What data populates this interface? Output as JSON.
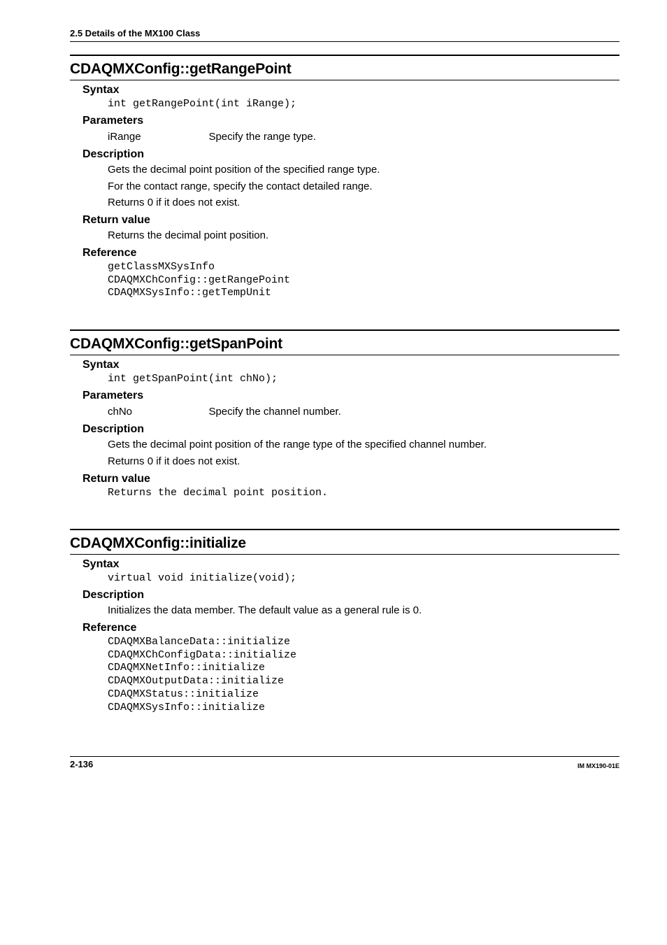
{
  "page": {
    "section_header": "2.5  Details of the MX100 Class",
    "footer_left": "2-136",
    "footer_right": "IM MX190-01E"
  },
  "entries": [
    {
      "title": "CDAQMXConfig::getRangePoint",
      "syntax_label": "Syntax",
      "syntax_code": "int getRangePoint(int iRange);",
      "params_label": "Parameters",
      "params": [
        {
          "name": "iRange",
          "desc": "Specify the range type."
        }
      ],
      "desc_label": "Description",
      "desc_lines": [
        "Gets the decimal point position of the specified range type.",
        "For the contact range, specify the contact detailed range.",
        "Returns 0 if it does not exist."
      ],
      "return_label": "Return value",
      "return_text": "Returns the decimal point position.",
      "return_is_code": false,
      "ref_label": "Reference",
      "ref_code": "getClassMXSysInfo\nCDAQMXChConfig::getRangePoint\nCDAQMXSysInfo::getTempUnit"
    },
    {
      "title": "CDAQMXConfig::getSpanPoint",
      "syntax_label": "Syntax",
      "syntax_code": "int getSpanPoint(int chNo);",
      "params_label": "Parameters",
      "params": [
        {
          "name": "chNo",
          "desc": "Specify the channel number."
        }
      ],
      "desc_label": "Description",
      "desc_lines": [
        "Gets the decimal point position of the range type of the specified channel number.",
        "Returns 0 if it does not exist."
      ],
      "return_label": "Return value",
      "return_text": "Returns the decimal point position.",
      "return_is_code": true
    },
    {
      "title": "CDAQMXConfig::initialize",
      "syntax_label": "Syntax",
      "syntax_code": "virtual void initialize(void);",
      "desc_label": "Description",
      "desc_lines": [
        "Initializes the data member. The default value as a general rule is 0."
      ],
      "ref_label": "Reference",
      "ref_code": "CDAQMXBalanceData::initialize\nCDAQMXChConfigData::initialize\nCDAQMXNetInfo::initialize\nCDAQMXOutputData::initialize\nCDAQMXStatus::initialize\nCDAQMXSysInfo::initialize"
    }
  ]
}
